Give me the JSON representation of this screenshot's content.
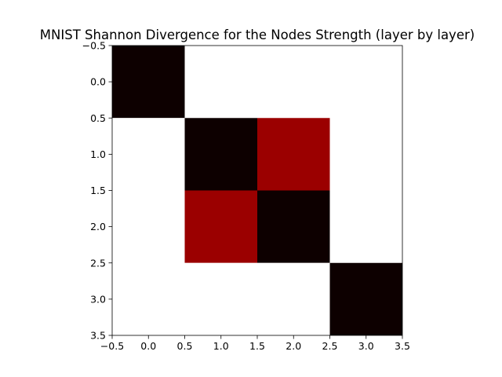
{
  "chart_data": {
    "type": "heatmap",
    "title": "MNIST Shannon Divergence for the Nodes Strength (layer by layer)",
    "xlabel": "",
    "ylabel": "",
    "xlim": [
      -0.5,
      3.5
    ],
    "ylim": [
      3.5,
      -0.5
    ],
    "y_axis_inverted": true,
    "grid": false,
    "legend": "none",
    "x_ticks": [
      -0.5,
      0.0,
      0.5,
      1.0,
      1.5,
      2.0,
      2.5,
      3.0,
      3.5
    ],
    "x_tick_labels": [
      "−0.5",
      "0.0",
      "0.5",
      "1.0",
      "1.5",
      "2.0",
      "2.5",
      "3.0",
      "3.5"
    ],
    "y_ticks": [
      -0.5,
      0.0,
      0.5,
      1.0,
      1.5,
      2.0,
      2.5,
      3.0,
      3.5
    ],
    "y_tick_labels": [
      "−0.5",
      "0.0",
      "0.5",
      "1.0",
      "1.5",
      "2.0",
      "2.5",
      "3.0",
      "3.5"
    ],
    "rows": [
      0,
      1,
      2,
      3
    ],
    "columns": [
      0,
      1,
      2,
      3
    ],
    "cell_colors": [
      [
        "#0d0000",
        "#ffffff",
        "#ffffff",
        "#ffffff"
      ],
      [
        "#ffffff",
        "#0d0000",
        "#9b0000",
        "#ffffff"
      ],
      [
        "#ffffff",
        "#9b0000",
        "#0d0000",
        "#ffffff"
      ],
      [
        "#ffffff",
        "#ffffff",
        "#ffffff",
        "#0d0000"
      ]
    ]
  }
}
